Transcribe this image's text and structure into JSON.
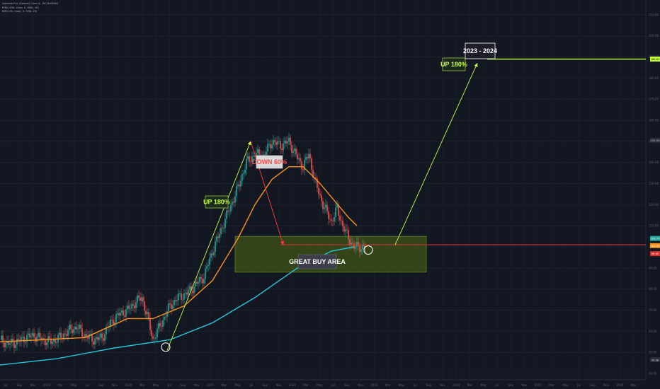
{
  "legend": {
    "symbol": "Alphabet Inc (Google) Class A, 1W, NASDAQ",
    "ma1": "EMA (200, close, 0, SMA, 20)",
    "ma2": "EMA (50, close, 0, SMA, 20)"
  },
  "annotations": {
    "up_left": "UP 180%",
    "down": "DOWN 60%",
    "buy_area": "GREAT BUY AREA",
    "up_right": "UP 180%",
    "period": "2023 - 2024"
  },
  "price_tags": {
    "target": "188.82",
    "high": "151.55",
    "current_a": "102.70",
    "current_b": "102.81",
    "current_c": "99.05",
    "low": "40.38"
  },
  "colors": {
    "background": "#131722",
    "up_candle": "#26a69a",
    "down_candle": "#ef5350",
    "ema_orange": "#f7931a",
    "ema_cyan": "#26c6da",
    "arrow_green": "#c6ff3d",
    "arrow_red": "#ff3b3b",
    "buy_zone": "#4e6a13",
    "target_line": "#c6ff3d",
    "support_line": "#d32f2f"
  },
  "chart_data": {
    "type": "candlestick",
    "y_axis_labels": [
      "210.00",
      "200.00",
      "190.00",
      "180.00",
      "170.00",
      "160.00",
      "150.00",
      "140.00",
      "130.00",
      "120.00",
      "110.00",
      "100.00",
      "90.00",
      "80.00",
      "70.00",
      "60.00",
      "50.00",
      "40.00"
    ],
    "x_axis_labels": [
      "Jul",
      "Sep",
      "Nov",
      "2019",
      "Mar",
      "May",
      "Jul",
      "Sep",
      "Nov",
      "2020",
      "Mar",
      "May",
      "Jul",
      "Sep",
      "Nov",
      "2021",
      "Mar",
      "May",
      "Jul",
      "Sep",
      "Nov",
      "2022",
      "Mar",
      "May",
      "Jul",
      "Sep",
      "Nov",
      "2023",
      "Mar",
      "May",
      "Jul",
      "Sep",
      "Nov",
      "2024",
      "Mar",
      "May",
      "Jul",
      "Sep",
      "Nov",
      "2025",
      "Mar",
      "May",
      "Jul",
      "Sep",
      "Nov",
      "2026",
      "Mar"
    ],
    "ylim": [
      37,
      217
    ],
    "price_path_key_points": [
      [
        0,
        56
      ],
      [
        6,
        54
      ],
      [
        12,
        55
      ],
      [
        18,
        57
      ],
      [
        24,
        58
      ],
      [
        30,
        56
      ],
      [
        36,
        55
      ],
      [
        42,
        57
      ],
      [
        48,
        60
      ],
      [
        54,
        62
      ],
      [
        60,
        58
      ],
      [
        66,
        56
      ],
      [
        72,
        57
      ],
      [
        78,
        64
      ],
      [
        84,
        68
      ],
      [
        90,
        70
      ],
      [
        96,
        74
      ],
      [
        100,
        76
      ],
      [
        104,
        67
      ],
      [
        108,
        56
      ],
      [
        114,
        64
      ],
      [
        120,
        72
      ],
      [
        126,
        76
      ],
      [
        132,
        78
      ],
      [
        138,
        82
      ],
      [
        144,
        86
      ],
      [
        150,
        98
      ],
      [
        156,
        108
      ],
      [
        162,
        118
      ],
      [
        168,
        128
      ],
      [
        174,
        140
      ],
      [
        180,
        144
      ],
      [
        186,
        143
      ],
      [
        192,
        150
      ],
      [
        198,
        148
      ],
      [
        204,
        150
      ],
      [
        210,
        142
      ],
      [
        214,
        138
      ],
      [
        218,
        144
      ],
      [
        222,
        132
      ],
      [
        228,
        120
      ],
      [
        234,
        112
      ],
      [
        238,
        118
      ],
      [
        242,
        110
      ],
      [
        246,
        104
      ],
      [
        250,
        100
      ]
    ],
    "ema50_key_points": [
      [
        0,
        55
      ],
      [
        30,
        56
      ],
      [
        60,
        57
      ],
      [
        90,
        66
      ],
      [
        108,
        66
      ],
      [
        130,
        72
      ],
      [
        150,
        84
      ],
      [
        168,
        104
      ],
      [
        180,
        120
      ],
      [
        192,
        132
      ],
      [
        204,
        138
      ],
      [
        214,
        138
      ],
      [
        226,
        130
      ],
      [
        236,
        122
      ],
      [
        246,
        114
      ],
      [
        252,
        110
      ]
    ],
    "ema200_key_points": [
      [
        0,
        44
      ],
      [
        40,
        47
      ],
      [
        80,
        52
      ],
      [
        120,
        56
      ],
      [
        150,
        64
      ],
      [
        180,
        76
      ],
      [
        210,
        90
      ],
      [
        234,
        98
      ],
      [
        250,
        100
      ]
    ],
    "buy_zone": {
      "y_top": 105,
      "y_bottom": 88
    }
  }
}
